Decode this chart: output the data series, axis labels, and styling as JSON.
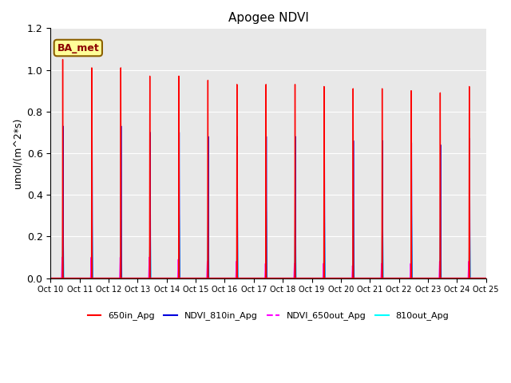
{
  "title": "Apogee NDVI",
  "ylabel": "umol/(m^2*s)",
  "ylim": [
    0.0,
    1.2
  ],
  "plot_bg_color": "#e8e8e8",
  "fig_bg_color": "#ffffff",
  "legend_label": "BA_met",
  "series": {
    "650in_Apg": {
      "color": "#ff0000",
      "lw": 1.0
    },
    "NDVI_810in_Apg": {
      "color": "#0000dd",
      "lw": 1.0
    },
    "NDVI_650out_Apg": {
      "color": "#ff00ff",
      "lw": 1.0
    },
    "810out_Apg": {
      "color": "#00ffff",
      "lw": 1.0
    }
  },
  "x_tick_labels": [
    "Oct 10",
    "Oct 11",
    "Oct 12",
    "Oct 13",
    "Oct 14",
    "Oct 15",
    "Oct 16",
    "Oct 17",
    "Oct 18",
    "Oct 19",
    "Oct 20",
    "Oct 21",
    "Oct 22",
    "Oct 23",
    "Oct 24",
    "Oct 25"
  ],
  "num_cycles": 15,
  "peaks_650in": [
    1.05,
    1.01,
    1.01,
    0.97,
    0.97,
    0.95,
    0.93,
    0.93,
    0.93,
    0.92,
    0.91,
    0.91,
    0.9,
    0.89,
    0.92
  ],
  "peaks_810in": [
    0.73,
    0.72,
    0.73,
    0.7,
    0.7,
    0.68,
    0.68,
    0.68,
    0.68,
    0.67,
    0.66,
    0.66,
    0.65,
    0.64,
    0.67
  ],
  "peaks_650out": [
    0.1,
    0.1,
    0.1,
    0.1,
    0.09,
    0.08,
    0.08,
    0.07,
    0.07,
    0.07,
    0.06,
    0.07,
    0.07,
    0.08,
    0.08
  ],
  "peaks_810out": [
    0.28,
    0.27,
    0.28,
    0.27,
    0.3,
    0.3,
    0.31,
    0.32,
    0.32,
    0.33,
    0.33,
    0.35,
    0.3,
    0.29,
    0.3
  ],
  "yticks": [
    0.0,
    0.2,
    0.4,
    0.6,
    0.8,
    1.0,
    1.2
  ]
}
